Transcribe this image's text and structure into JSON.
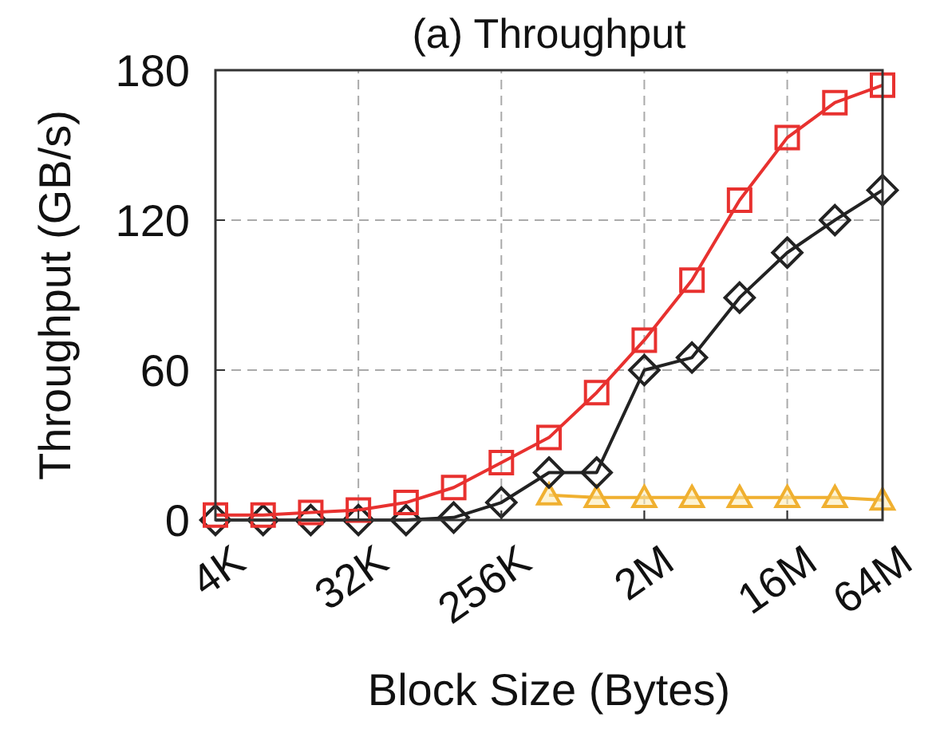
{
  "chart_data": {
    "type": "line",
    "title": "(a) Throughput",
    "xlabel": "Block Size (Bytes)",
    "ylabel": "Throughput (GB/s)",
    "categories": [
      "4K",
      null,
      null,
      "32K",
      null,
      null,
      "256K",
      null,
      null,
      "2M",
      null,
      null,
      "16M",
      null,
      "64M"
    ],
    "ylim": [
      0,
      180
    ],
    "yticks": [
      0,
      60,
      120,
      180
    ],
    "grid": true,
    "series": [
      {
        "color": "#e8312f",
        "marker": "square",
        "values": [
          2,
          2,
          3,
          4,
          7,
          13,
          23,
          33,
          51,
          72,
          96,
          128,
          153,
          167,
          174
        ]
      },
      {
        "color": "#222222",
        "marker": "diamond",
        "values": [
          0,
          0,
          0,
          0,
          0,
          1,
          7,
          19,
          19,
          60,
          65,
          89,
          107,
          120,
          132
        ]
      },
      {
        "color": "#f0b030",
        "marker": "triangle",
        "values": [
          null,
          null,
          null,
          null,
          null,
          null,
          null,
          10,
          9,
          9,
          9,
          9,
          9,
          9,
          8
        ]
      }
    ]
  }
}
